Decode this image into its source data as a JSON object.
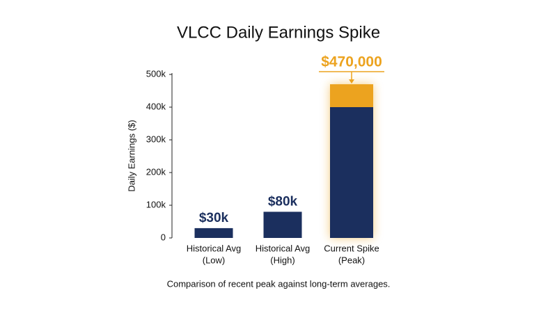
{
  "chart_data": {
    "type": "bar",
    "title": "VLCC Daily Earnings Spike",
    "y_label": "Daily Earnings ($)",
    "caption": "Comparison of recent peak against long-term averages.",
    "categories": [
      [
        "Historical Avg",
        "(Low)"
      ],
      [
        "Historical Avg",
        "(High)"
      ],
      [
        "Current Spike",
        "(Peak)"
      ]
    ],
    "values": [
      30000,
      80000,
      470000
    ],
    "value_labels": [
      "$30k",
      "$80k",
      "$470,000"
    ],
    "color": "#1b2f5e",
    "highlight": {
      "index": 2,
      "from": 400000,
      "color": "#eca31f"
    },
    "ylim": [
      0,
      500000
    ],
    "yticks": [
      0,
      {
        "value": 100000,
        "label": "100k"
      },
      {
        "value": 200000,
        "label": "200k"
      },
      {
        "value": 300000,
        "label": "300k"
      },
      {
        "value": 400000,
        "label": "400k"
      },
      {
        "value": 500000,
        "label": "500k"
      }
    ]
  }
}
